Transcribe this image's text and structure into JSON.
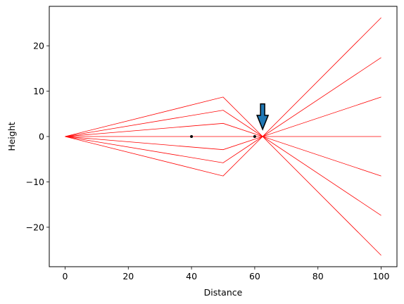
{
  "chart_data": {
    "type": "line",
    "title": "",
    "xlabel": "Distance",
    "ylabel": "Height",
    "xlim": [
      -5,
      105
    ],
    "ylim": [
      -28.7,
      28.7
    ],
    "xticks": [
      0,
      20,
      40,
      60,
      80,
      100
    ],
    "yticks": [
      -20,
      -10,
      0,
      10,
      20
    ],
    "xtick_labels": [
      "0",
      "20",
      "40",
      "60",
      "80",
      "100"
    ],
    "ytick_labels": [
      "−20",
      "−10",
      "0",
      "10",
      "20"
    ],
    "grid": false,
    "line_color": "#ff0000",
    "series": [
      {
        "x": [
          0,
          50,
          62.5,
          100
        ],
        "y": [
          0,
          8.7,
          0,
          -26.2
        ]
      },
      {
        "x": [
          0,
          50,
          62.5,
          100
        ],
        "y": [
          0,
          5.8,
          0,
          -17.4
        ]
      },
      {
        "x": [
          0,
          50,
          62.5,
          100
        ],
        "y": [
          0,
          2.9,
          0,
          -8.7
        ]
      },
      {
        "x": [
          0,
          50,
          62.5,
          100
        ],
        "y": [
          0,
          0,
          0,
          0
        ]
      },
      {
        "x": [
          0,
          50,
          62.5,
          100
        ],
        "y": [
          0,
          -2.9,
          0,
          8.7
        ]
      },
      {
        "x": [
          0,
          50,
          62.5,
          100
        ],
        "y": [
          0,
          -5.8,
          0,
          17.4
        ]
      },
      {
        "x": [
          0,
          50,
          62.5,
          100
        ],
        "y": [
          0,
          -8.7,
          0,
          26.2
        ]
      }
    ],
    "points": [
      {
        "x": 40,
        "y": 0
      },
      {
        "x": 60,
        "y": 0
      }
    ],
    "point_color": "#000000",
    "annotations": [
      {
        "type": "arrow",
        "direction": "down",
        "x": 62.5,
        "y_tip": 1.6,
        "y_tail": 7.2,
        "color": "#1f77b4"
      }
    ]
  }
}
